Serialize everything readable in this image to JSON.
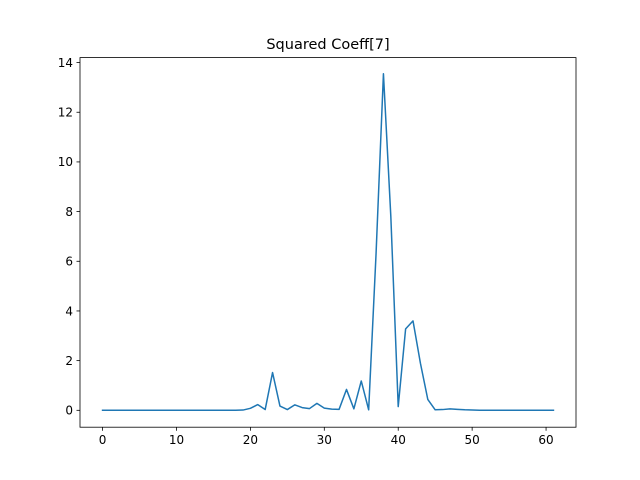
{
  "chart_data": {
    "type": "line",
    "title": "Squared Coeff[7]",
    "xlabel": "",
    "ylabel": "",
    "xlim": [
      -3.05,
      64.05
    ],
    "ylim": [
      -0.68,
      14.2
    ],
    "xticks": [
      0,
      10,
      20,
      30,
      40,
      50,
      60
    ],
    "yticks": [
      0,
      2,
      4,
      6,
      8,
      10,
      12,
      14
    ],
    "grid": false,
    "series": [
      {
        "color": "#1f77b4",
        "x": [
          0,
          1,
          2,
          3,
          4,
          5,
          6,
          7,
          8,
          9,
          10,
          11,
          12,
          13,
          14,
          15,
          16,
          17,
          18,
          19,
          20,
          21,
          22,
          23,
          24,
          25,
          26,
          27,
          28,
          29,
          30,
          31,
          32,
          33,
          34,
          35,
          36,
          37,
          38,
          39,
          40,
          41,
          42,
          43,
          44,
          45,
          46,
          47,
          48,
          49,
          50,
          51,
          52,
          53,
          54,
          55,
          56,
          57,
          58,
          59,
          60,
          61
        ],
        "y": [
          0,
          0,
          0,
          0,
          0,
          0,
          0,
          0,
          0,
          0,
          0,
          0,
          0,
          0,
          0,
          0,
          0,
          0,
          0,
          0.01,
          0.08,
          0.23,
          0.03,
          1.52,
          0.17,
          0.03,
          0.22,
          0.11,
          0.07,
          0.28,
          0.09,
          0.05,
          0.04,
          0.84,
          0.06,
          1.18,
          0.02,
          6.3,
          13.55,
          7.8,
          0.15,
          3.28,
          3.6,
          1.9,
          0.44,
          0.02,
          0.03,
          0.06,
          0.04,
          0.02,
          0.01,
          0,
          0,
          0,
          0,
          0,
          0,
          0,
          0,
          0,
          0,
          0
        ]
      }
    ]
  }
}
